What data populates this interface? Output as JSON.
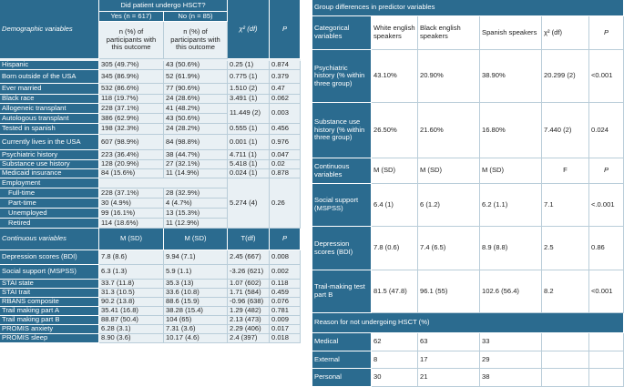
{
  "left_table": {
    "header": {
      "title": "Demographic variables",
      "question": "Did patient undergo HSCT?",
      "yes_label": "Yes (n = 617)",
      "no_label": "No (n = 85)",
      "chi_label": "χ² (df)",
      "p_label": "P",
      "yes_sub": "n (%) of participants with this outcome",
      "no_sub": "n (%) of participants with this outcome"
    },
    "rows": [
      {
        "label": "Hispanic",
        "yes": "305 (49.7%)",
        "no": "43 (50.6%)",
        "chi": "0.25 (1)",
        "p": "0.874"
      },
      {
        "label": "Born outside of the USA",
        "yes": "345 (86.9%)",
        "no": "52 (61.9%)",
        "chi": "0.775 (1)",
        "p": "0.379"
      },
      {
        "label": "Ever married",
        "yes": "532 (86.6%)",
        "no": "77 (90.6%)",
        "chi": "1.510 (2)",
        "p": "0.47"
      },
      {
        "label": "Black race",
        "yes": "118 (19.7%)",
        "no": "24 (28.6%)",
        "chi": "3.491 (1)",
        "p": "0.062"
      },
      {
        "label": "Allogeneic transplant",
        "yes": "228 (37.1%)",
        "no": "41 (48.2%)"
      },
      {
        "label": "Autologous transplant",
        "yes": "386 (62.9%)",
        "no": "43 (50.6%)"
      },
      {
        "label": "Tested in spanish",
        "yes": "198 (32.3%)",
        "no": "24 (28.2%)",
        "chi": "0.555 (1)",
        "p": "0.456"
      },
      {
        "label": "Currently lives in the USA",
        "yes": "607 (98.9%)",
        "no": "84 (98.8%)",
        "chi": "0.001 (1)",
        "p": "0.976"
      },
      {
        "label": "Psychiatric history",
        "yes": "223 (36.4%)",
        "no": "38 (44.7%)",
        "chi": "4.711 (1)",
        "p": "0.047"
      },
      {
        "label": "Substance use history",
        "yes": "128 (20.9%)",
        "no": "27 (32.1%)",
        "chi": "5.418 (1)",
        "p": "0.02"
      },
      {
        "label": "Medicaid insurance",
        "yes": "84 (15.6%)",
        "no": "11 (14.9%)",
        "chi": "0.024 (1)",
        "p": "0.878"
      }
    ],
    "transplant_merged": {
      "chi": "11.449 (2)",
      "p": "0.003"
    },
    "employment": {
      "label": "Employment",
      "chi": "5.274 (4)",
      "p": "0.26",
      "rows": [
        {
          "label": "Full-time",
          "yes": "228 (37.1%)",
          "no": "28 (32.9%)"
        },
        {
          "label": "Part-time",
          "yes": "30 (4.9%)",
          "no": "4 (4.7%)"
        },
        {
          "label": "Unemployed",
          "yes": "99 (16.1%)",
          "no": "13 (15.3%)"
        },
        {
          "label": "Retired",
          "yes": "114 (18.6%)",
          "no": "11 (12.9%)"
        }
      ]
    },
    "continuous_header": {
      "title": "Continuous variables",
      "yes": "M (SD)",
      "no": "M (SD)",
      "stat": "T(df)",
      "p": "P"
    },
    "continuous_rows": [
      {
        "label": "Depression scores (BDI)",
        "yes": "7.8 (8.6)",
        "no": "9.94 (7.1)",
        "stat": "2.45 (667)",
        "p": "0.008"
      },
      {
        "label": "Social support (MSPSS)",
        "yes": "6.3 (1.3)",
        "no": "5.9 (1.1)",
        "stat": "-3.26 (621)",
        "p": "0.002"
      },
      {
        "label": "STAI state",
        "yes": "33.7 (11.8)",
        "no": "35.3 (13)",
        "stat": "1.07 (602)",
        "p": "0.118"
      },
      {
        "label": "STAI trait",
        "yes": "31.3 (10.5)",
        "no": "33.6 (10.8)",
        "stat": "1.71 (584)",
        "p": "0.459"
      },
      {
        "label": "RBANS composite",
        "yes": "90.2 (13.8)",
        "no": "88.6 (15.9)",
        "stat": "-0.96 (638)",
        "p": "0.076"
      },
      {
        "label": "Trail making part A",
        "yes": "35.41 (16.8)",
        "no": "38.28 (15.4)",
        "stat": "1.29 (482)",
        "p": "0.781"
      },
      {
        "label": "Trail making part B",
        "yes": "88.87 (50.4)",
        "no": "104 (65)",
        "stat": "2.13 (473)",
        "p": "0.009"
      },
      {
        "label": "PROMIS anxiety",
        "yes": "6.28 (3.1)",
        "no": "7.31 (3.6)",
        "stat": "2.29 (406)",
        "p": "0.017"
      },
      {
        "label": "PROMIS sleep",
        "yes": "8.90 (3.6)",
        "no": "10.17 (4.6)",
        "stat": "2.4 (397)",
        "p": "0.018"
      }
    ]
  },
  "right_table": {
    "title": "Group differences in predictor variables",
    "header": {
      "label": "Categorical variables",
      "white": "White english speakers",
      "black": "Black english speakers",
      "spanish": "Spanish speakers",
      "chi": "χ² (df)",
      "p": "P"
    },
    "rows": [
      {
        "label": "Psychiatric history (% within three group)",
        "white": "43.10%",
        "black": "20.90%",
        "spanish": "38.90%",
        "chi": "20.299 (2)",
        "p": "<0.001"
      },
      {
        "label": "Substance use history (% within three group)",
        "white": "26.50%",
        "black": "21.60%",
        "spanish": "16.80%",
        "chi": "7.440 (2)",
        "p": "0.024"
      }
    ],
    "continuous_header": {
      "label": "Continuous variables",
      "white": "M (SD)",
      "black": "M (SD)",
      "spanish": "M (SD)",
      "stat": "F",
      "p": "P"
    },
    "continuous_rows": [
      {
        "label": "Social support (MSPSS)",
        "white": "6.4 (1)",
        "black": "6 (1.2)",
        "spanish": "6.2 (1.1)",
        "stat": "7.1",
        "p": "<.0.001"
      },
      {
        "label": "Depression scores (BDI)",
        "white": "7.8 (0.6)",
        "black": "7.4 (6.5)",
        "spanish": "8.9 (8.8)",
        "stat": "2.5",
        "p": "0.86"
      },
      {
        "label": "Trail-making test part B",
        "white": "81.5 (47.8)",
        "black": "96.1 (55)",
        "spanish": "102.6 (56.4)",
        "stat": "8.2",
        "p": "<0.001"
      }
    ],
    "reason_title": "Reason for not undergoing HSCT (%)",
    "reason_rows": [
      {
        "label": "Medical",
        "white": "62",
        "black": "63",
        "spanish": "33"
      },
      {
        "label": "External",
        "white": "8",
        "black": "17",
        "spanish": "29"
      },
      {
        "label": "Personal",
        "white": "30",
        "black": "21",
        "spanish": "38"
      }
    ]
  }
}
